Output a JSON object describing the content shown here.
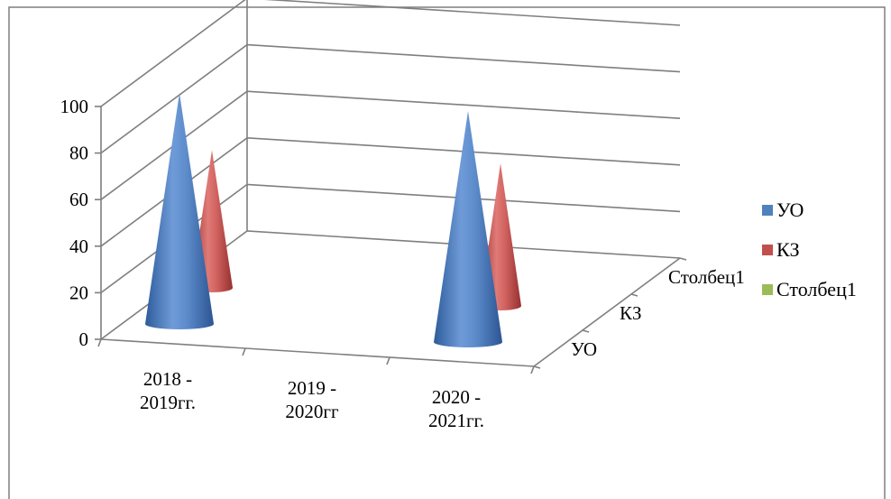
{
  "chart_data": {
    "type": "bar",
    "subtype": "3d-cone",
    "categories": [
      "2018 - 2019гг.",
      "2019 - 2020гг",
      "2020 - 2021гг."
    ],
    "category_lines": [
      [
        "2018 -",
        "2019гг."
      ],
      [
        "2019 -",
        "2020гг"
      ],
      [
        "2020 -",
        "2021гг."
      ]
    ],
    "depth_labels": [
      "УО",
      "КЗ",
      "Столбец1"
    ],
    "series": [
      {
        "name": "УО",
        "values": [
          100,
          null,
          100
        ],
        "color": "#4f81bd"
      },
      {
        "name": "КЗ",
        "values": [
          60,
          null,
          62
        ],
        "color": "#c0504d"
      },
      {
        "name": "Столбец1",
        "values": [
          null,
          null,
          null
        ],
        "color": "#9bbb59"
      }
    ],
    "y_ticks": [
      "0",
      "20",
      "40",
      "60",
      "80",
      "100"
    ],
    "ylim": [
      0,
      100
    ],
    "grid": true,
    "legend_position": "right"
  },
  "colors": {
    "grid": "#7f7f7f",
    "border": "#7f7f7f"
  }
}
